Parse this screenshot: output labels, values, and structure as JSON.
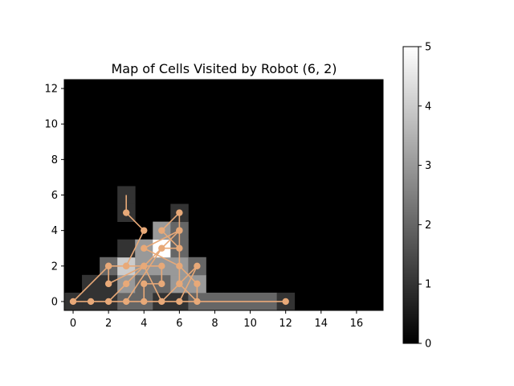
{
  "chart_data": {
    "type": "heatmap",
    "title": "Map of Cells Visited by Robot (6, 2)",
    "xlabel": "",
    "ylabel": "",
    "xlim": [
      -0.5,
      17.5
    ],
    "ylim": [
      -0.5,
      12.5
    ],
    "x_ticks": [
      0,
      2,
      4,
      6,
      8,
      10,
      12,
      14,
      16
    ],
    "y_ticks": [
      0,
      2,
      4,
      6,
      8,
      10,
      12
    ],
    "colormap": "gray",
    "colorbar": {
      "min": 0,
      "max": 5,
      "ticks": [
        0,
        1,
        2,
        3,
        4,
        5
      ]
    },
    "cells": [
      {
        "x": 0,
        "y": 0,
        "v": 1
      },
      {
        "x": 1,
        "y": 0,
        "v": 1
      },
      {
        "x": 2,
        "y": 0,
        "v": 1
      },
      {
        "x": 3,
        "y": 0,
        "v": 2
      },
      {
        "x": 4,
        "y": 0,
        "v": 2
      },
      {
        "x": 5,
        "y": 0,
        "v": 1
      },
      {
        "x": 6,
        "y": 0,
        "v": 1
      },
      {
        "x": 7,
        "y": 0,
        "v": 2
      },
      {
        "x": 8,
        "y": 0,
        "v": 2
      },
      {
        "x": 9,
        "y": 0,
        "v": 2
      },
      {
        "x": 10,
        "y": 0,
        "v": 2
      },
      {
        "x": 11,
        "y": 0,
        "v": 2
      },
      {
        "x": 12,
        "y": 0,
        "v": 1
      },
      {
        "x": 1,
        "y": 1,
        "v": 1
      },
      {
        "x": 2,
        "y": 1,
        "v": 1
      },
      {
        "x": 3,
        "y": 1,
        "v": 3
      },
      {
        "x": 4,
        "y": 1,
        "v": 2
      },
      {
        "x": 5,
        "y": 1,
        "v": 2
      },
      {
        "x": 6,
        "y": 1,
        "v": 3
      },
      {
        "x": 7,
        "y": 1,
        "v": 3
      },
      {
        "x": 2,
        "y": 2,
        "v": 2
      },
      {
        "x": 3,
        "y": 2,
        "v": 4
      },
      {
        "x": 4,
        "y": 2,
        "v": 3
      },
      {
        "x": 5,
        "y": 2,
        "v": 3
      },
      {
        "x": 6,
        "y": 2,
        "v": 3
      },
      {
        "x": 7,
        "y": 2,
        "v": 2
      },
      {
        "x": 3,
        "y": 3,
        "v": 1
      },
      {
        "x": 4,
        "y": 3,
        "v": 3
      },
      {
        "x": 5,
        "y": 3,
        "v": 5
      },
      {
        "x": 6,
        "y": 3,
        "v": 2
      },
      {
        "x": 5,
        "y": 4,
        "v": 3
      },
      {
        "x": 6,
        "y": 4,
        "v": 2
      },
      {
        "x": 3,
        "y": 5,
        "v": 1
      },
      {
        "x": 6,
        "y": 5,
        "v": 1
      },
      {
        "x": 3,
        "y": 6,
        "v": 1
      }
    ],
    "path_color": "#e8a978",
    "path": [
      [
        3,
        6
      ],
      [
        3,
        5
      ],
      [
        4,
        4
      ],
      [
        3,
        2
      ],
      [
        2,
        2
      ],
      [
        2,
        1
      ],
      [
        4,
        2
      ],
      [
        3,
        1
      ],
      [
        2,
        0
      ],
      [
        0,
        0
      ],
      [
        2,
        2
      ],
      [
        3,
        2
      ],
      [
        5,
        2
      ],
      [
        5,
        1
      ],
      [
        4,
        1
      ],
      [
        4,
        0
      ],
      [
        3,
        0
      ],
      [
        5,
        3
      ],
      [
        6,
        3
      ],
      [
        5,
        4
      ],
      [
        6,
        5
      ],
      [
        6,
        4
      ],
      [
        4,
        3
      ],
      [
        6,
        2
      ],
      [
        7,
        1
      ],
      [
        7,
        0
      ],
      [
        6,
        1
      ],
      [
        5,
        0
      ],
      [
        4,
        2
      ],
      [
        6,
        4
      ],
      [
        6,
        1
      ],
      [
        7,
        2
      ],
      [
        6,
        0
      ],
      [
        1,
        0
      ],
      [
        12,
        0
      ]
    ]
  }
}
